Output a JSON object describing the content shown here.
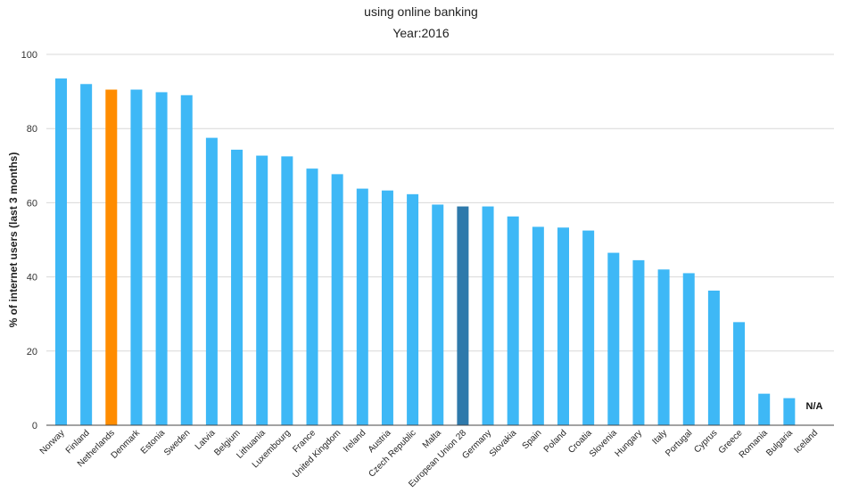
{
  "chart_data": {
    "type": "bar",
    "title": "using online banking",
    "subtitle": "Year:2016",
    "xlabel": "",
    "ylabel": "% of internet users (last 3 months)",
    "ylim": [
      0,
      100
    ],
    "yticks": [
      0,
      20,
      40,
      60,
      80,
      100
    ],
    "grid": true,
    "categories": [
      "Norway",
      "Finland",
      "Netherlands",
      "Denmark",
      "Estonia",
      "Sweden",
      "Latvia",
      "Belgium",
      "Lithuania",
      "Luxembourg",
      "France",
      "United Kingdom",
      "Ireland",
      "Austria",
      "Czech Republic",
      "Malta",
      "European Union 28",
      "Germany",
      "Slovakia",
      "Spain",
      "Poland",
      "Croatia",
      "Slovenia",
      "Hungary",
      "Italy",
      "Portugal",
      "Cyprus",
      "Greece",
      "Romania",
      "Bulgaria",
      "Iceland"
    ],
    "values": [
      93.5,
      92,
      90.5,
      90.5,
      89.8,
      89,
      77.5,
      74.3,
      72.7,
      72.5,
      69.2,
      67.7,
      63.8,
      63.3,
      62.3,
      59.5,
      59,
      59,
      56.3,
      53.5,
      53.3,
      52.5,
      46.5,
      44.5,
      42,
      41,
      36.3,
      27.8,
      8.5,
      7.3,
      null
    ],
    "colors": {
      "default": "#3eb8f6",
      "highlight": "#ff8c00",
      "average": "#2e79ab"
    },
    "highlight_category": "Netherlands",
    "average_category": "European Union 28",
    "missing_label": "N/A"
  }
}
